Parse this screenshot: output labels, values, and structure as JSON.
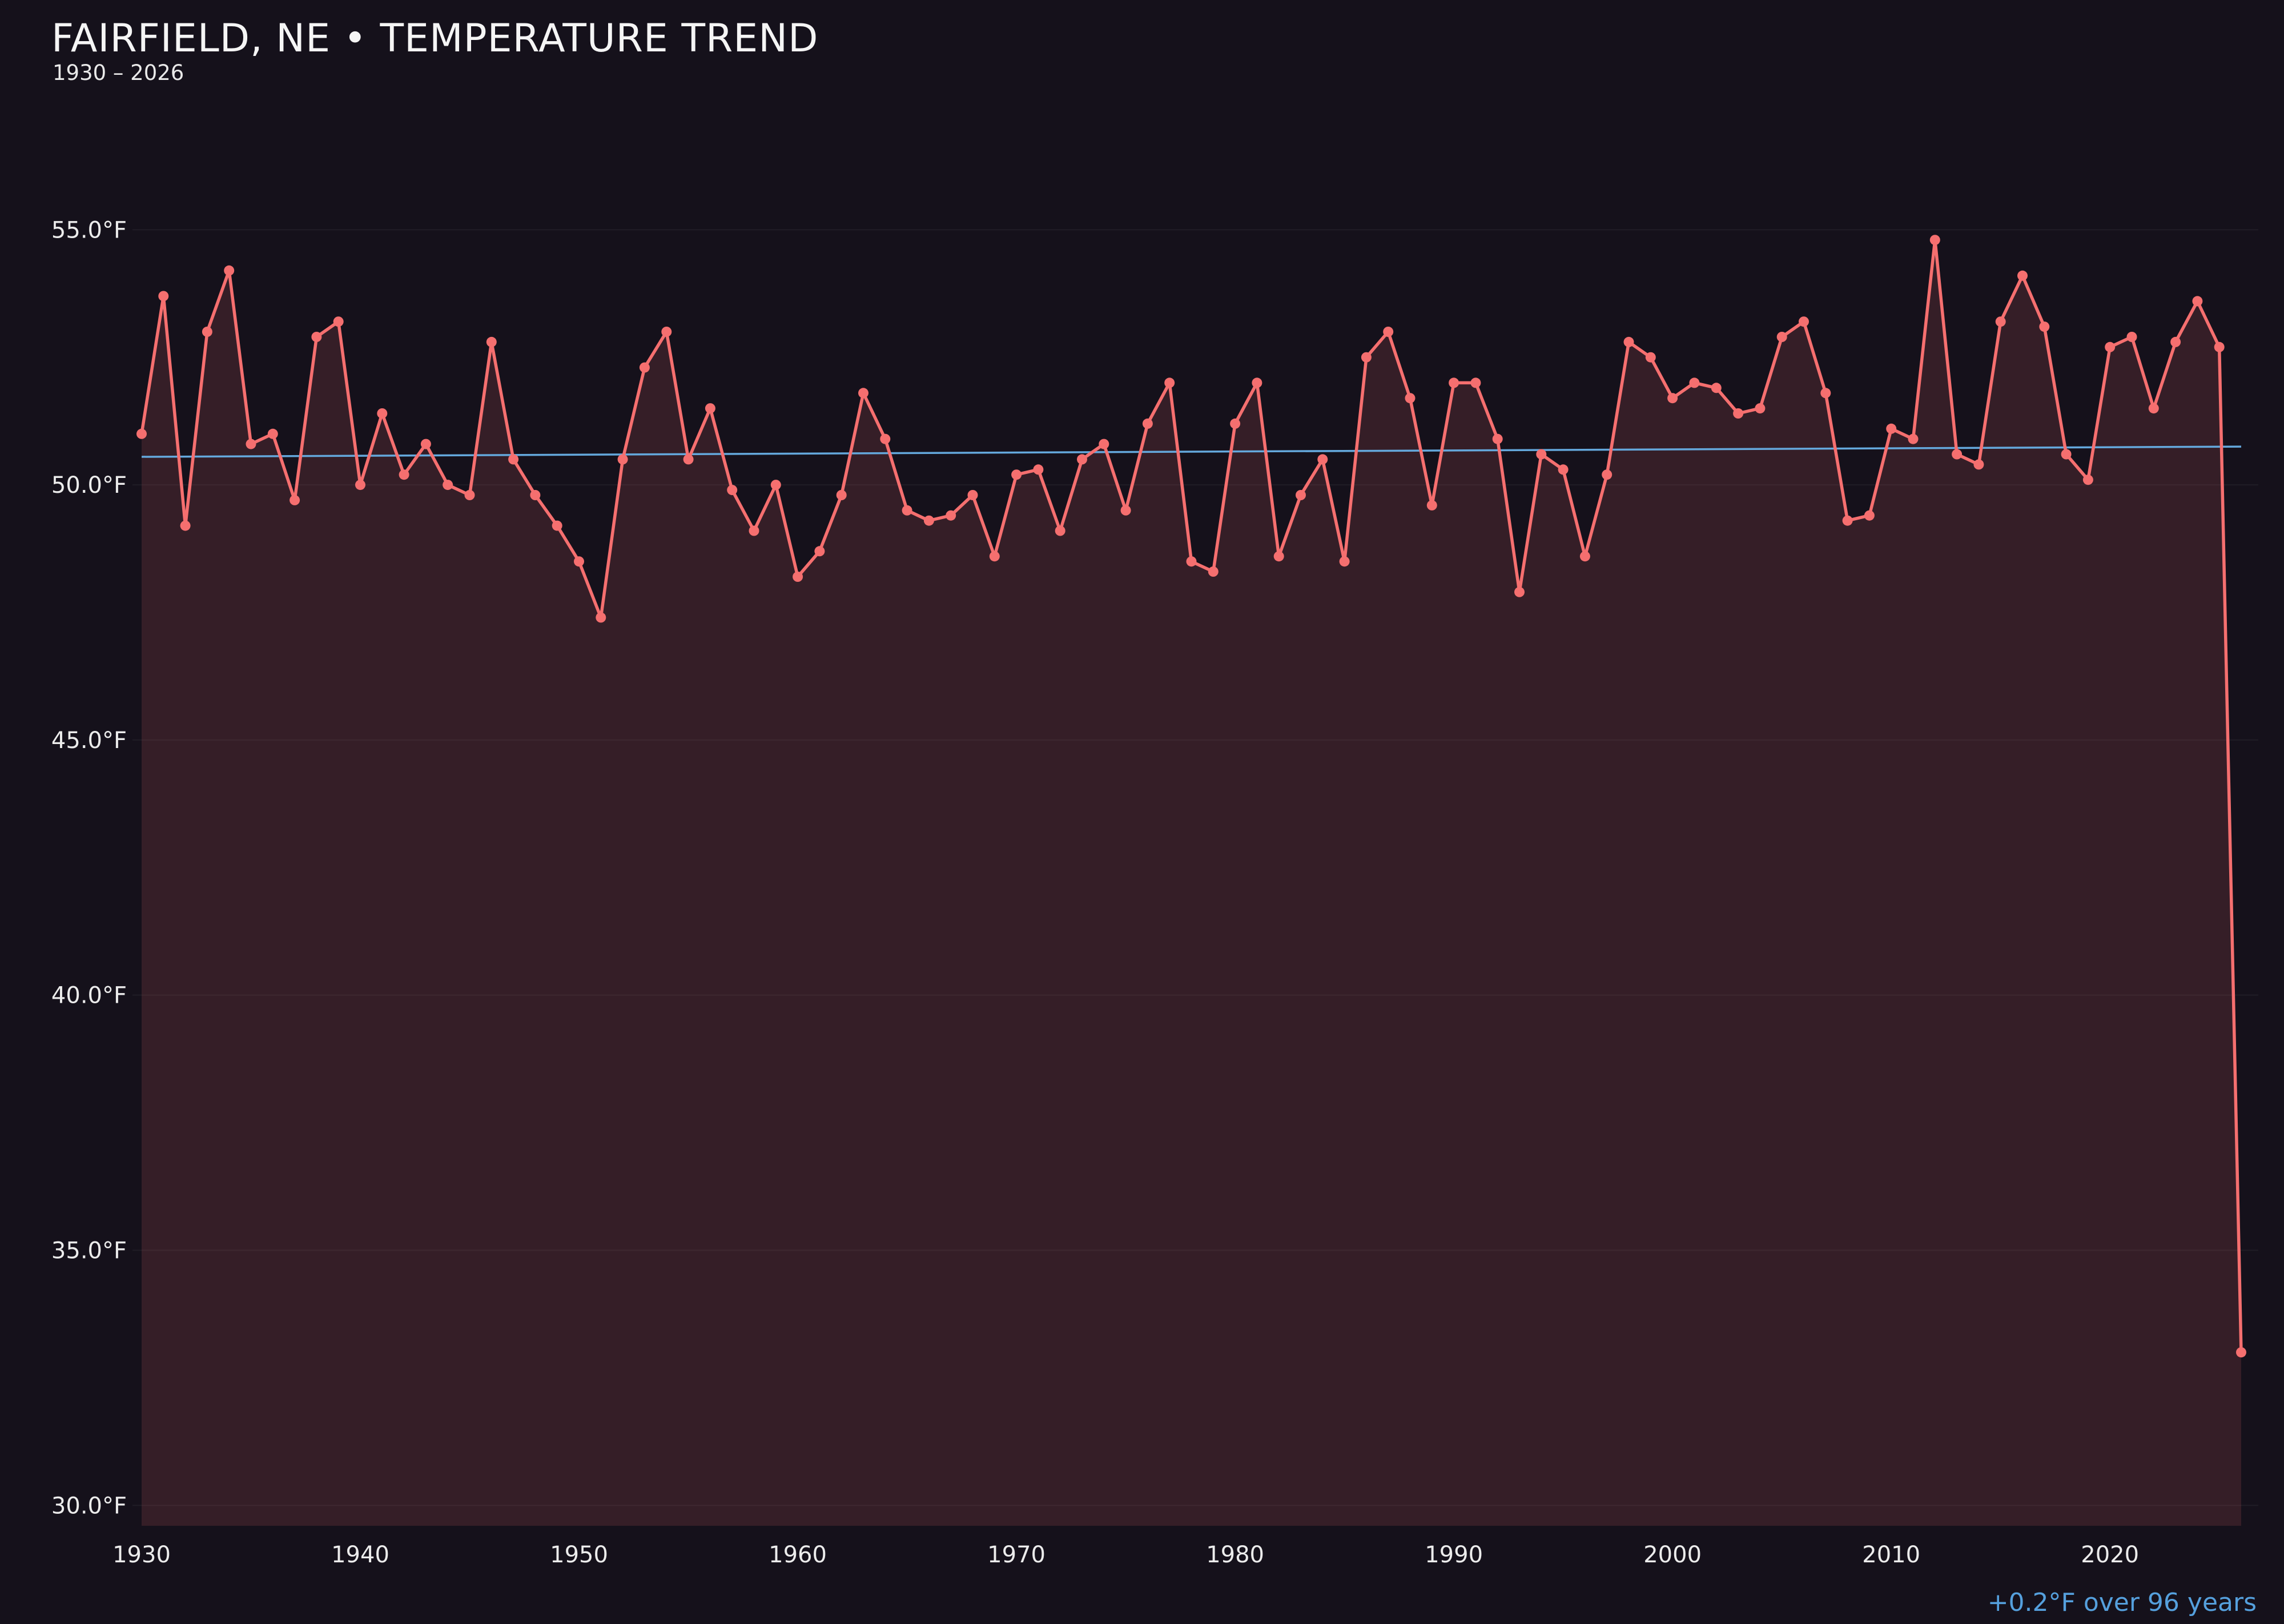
{
  "header": {
    "title": "FAIRFIELD, NE • TEMPERATURE TREND",
    "subtitle": "1930 – 2026"
  },
  "footer": {
    "trend_label": "+0.2°F over 96 years"
  },
  "chart_data": {
    "type": "line",
    "title": "FAIRFIELD, NE • TEMPERATURE TREND",
    "subtitle": "1930 – 2026",
    "x_start_year": 1930,
    "x_end_year": 2026,
    "x_ticks": [
      {
        "value": 1930,
        "label": "1930"
      },
      {
        "value": 1940,
        "label": "1940"
      },
      {
        "value": 1950,
        "label": "1950"
      },
      {
        "value": 1960,
        "label": "1960"
      },
      {
        "value": 1970,
        "label": "1970"
      },
      {
        "value": 1980,
        "label": "1980"
      },
      {
        "value": 1990,
        "label": "1990"
      },
      {
        "value": 2000,
        "label": "2000"
      },
      {
        "value": 2010,
        "label": "2010"
      },
      {
        "value": 2020,
        "label": "2020"
      }
    ],
    "y_ticks": [
      {
        "value": 30,
        "label": "30.0°F"
      },
      {
        "value": 35,
        "label": "35.0°F"
      },
      {
        "value": 40,
        "label": "40.0°F"
      },
      {
        "value": 45,
        "label": "45.0°F"
      },
      {
        "value": 50,
        "label": "50.0°F"
      },
      {
        "value": 55,
        "label": "55.0°F"
      }
    ],
    "ylim": [
      29.6,
      57.6
    ],
    "ylabel": "",
    "xlabel": "",
    "grid": true,
    "legend": "none",
    "series": [
      {
        "name": "annual-mean-temperature-f",
        "values": [
          51.0,
          53.7,
          49.2,
          53.0,
          54.2,
          50.8,
          51.0,
          49.7,
          52.9,
          53.2,
          50.0,
          51.4,
          50.2,
          50.8,
          50.0,
          49.8,
          52.8,
          50.5,
          49.8,
          49.2,
          48.5,
          47.4,
          50.5,
          52.3,
          53.0,
          50.5,
          51.5,
          49.9,
          49.1,
          50.0,
          48.2,
          48.7,
          49.8,
          51.8,
          50.9,
          49.5,
          49.3,
          49.4,
          49.8,
          48.6,
          50.2,
          50.3,
          49.1,
          50.5,
          50.8,
          49.5,
          51.2,
          52.0,
          48.5,
          48.3,
          51.2,
          52.0,
          48.6,
          49.8,
          50.5,
          48.5,
          52.5,
          53.0,
          51.7,
          49.6,
          52.0,
          52.0,
          50.9,
          47.9,
          50.6,
          50.3,
          48.6,
          50.2,
          52.8,
          52.5,
          51.7,
          52.0,
          51.9,
          51.4,
          51.5,
          52.9,
          53.2,
          51.8,
          49.3,
          49.4,
          51.1,
          50.9,
          54.8,
          50.6,
          50.4,
          53.2,
          54.1,
          53.1,
          50.6,
          50.1,
          52.7,
          52.9,
          51.5,
          52.8,
          53.6,
          52.7,
          33.0
        ]
      }
    ],
    "trend": {
      "start_value": 50.55,
      "end_value": 50.75,
      "label": "+0.2°F over 96 years"
    },
    "colors": {
      "line": "#f56f6f",
      "marker": "#f56f6f",
      "fill": "rgba(245,111,111,0.14)",
      "trend": "#64a8dc",
      "annotation": "#55a0dd",
      "background": "#15111b",
      "grid": "rgba(255,255,255,0.05)",
      "tick_text": "#ececec"
    }
  }
}
